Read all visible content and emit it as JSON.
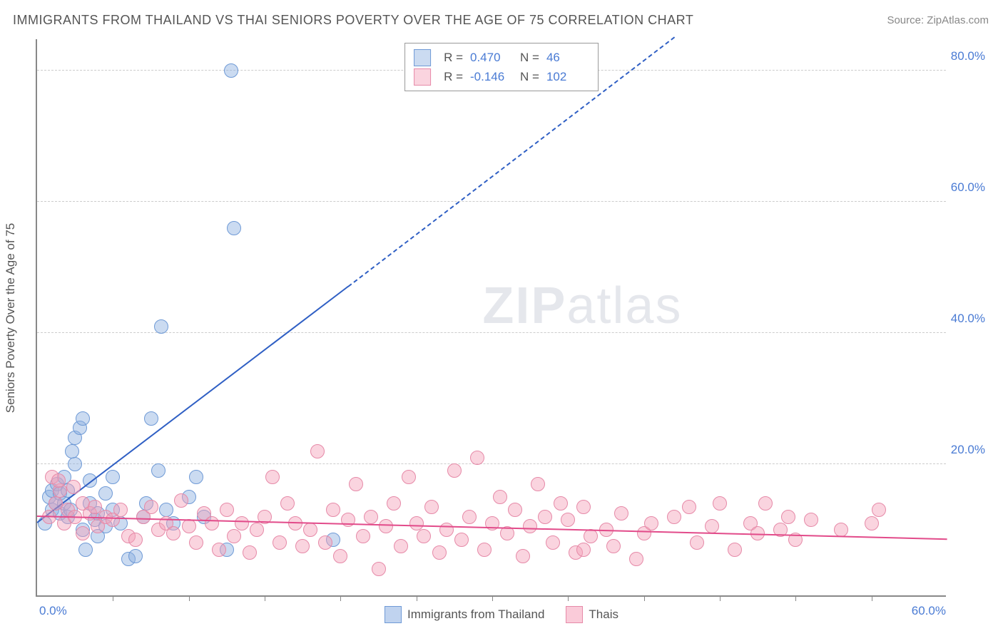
{
  "title": "IMMIGRANTS FROM THAILAND VS THAI SENIORS POVERTY OVER THE AGE OF 75 CORRELATION CHART",
  "source": "Source: ZipAtlas.com",
  "ylabel": "Seniors Poverty Over the Age of 75",
  "watermark_a": "ZIP",
  "watermark_b": "atlas",
  "chart": {
    "type": "scatter",
    "xlim": [
      0,
      60
    ],
    "ylim": [
      0,
      85
    ],
    "yticks": [
      {
        "v": 20,
        "label": "20.0%"
      },
      {
        "v": 40,
        "label": "40.0%"
      },
      {
        "v": 60,
        "label": "60.0%"
      },
      {
        "v": 80,
        "label": "80.0%"
      }
    ],
    "xtick_marks": [
      5,
      10,
      15,
      20,
      25,
      30,
      35,
      40,
      45,
      50,
      55
    ],
    "xtick_0": "0.0%",
    "xtick_max": "60.0%",
    "grid_color": "#cccccc",
    "background_color": "#ffffff",
    "point_radius": 9,
    "series": [
      {
        "name": "Immigrants from Thailand",
        "fill": "rgba(140,175,225,0.45)",
        "stroke": "#6f9ad6",
        "trend_color": "#2f5fc4",
        "R": "0.470",
        "N": "46",
        "trend": {
          "x1": 0,
          "y1": 11,
          "x2": 20.5,
          "y2": 47,
          "dash_after_x": 20.5,
          "x3": 42,
          "y3": 85
        },
        "points": [
          [
            0.5,
            11
          ],
          [
            0.8,
            15
          ],
          [
            1.0,
            16
          ],
          [
            1.0,
            13
          ],
          [
            1.2,
            14
          ],
          [
            1.3,
            17
          ],
          [
            1.5,
            12.5
          ],
          [
            1.5,
            15.5
          ],
          [
            1.8,
            14
          ],
          [
            1.8,
            18
          ],
          [
            2.0,
            12
          ],
          [
            2.0,
            16
          ],
          [
            2.2,
            13
          ],
          [
            2.5,
            20
          ],
          [
            2.5,
            24
          ],
          [
            2.8,
            25.5
          ],
          [
            3.0,
            27
          ],
          [
            3.0,
            10
          ],
          [
            3.2,
            7
          ],
          [
            3.5,
            14
          ],
          [
            3.8,
            11.5
          ],
          [
            4.0,
            12.5
          ],
          [
            4.0,
            9
          ],
          [
            4.5,
            10.5
          ],
          [
            5.0,
            18
          ],
          [
            5.0,
            13
          ],
          [
            5.5,
            11
          ],
          [
            6.0,
            5.5
          ],
          [
            6.5,
            6
          ],
          [
            7.0,
            12
          ],
          [
            7.5,
            27
          ],
          [
            8.0,
            19
          ],
          [
            8.5,
            13
          ],
          [
            9.0,
            11
          ],
          [
            10.0,
            15
          ],
          [
            10.5,
            18
          ],
          [
            11.0,
            12
          ],
          [
            12.5,
            7
          ],
          [
            8.2,
            41
          ],
          [
            12.8,
            80
          ],
          [
            13.0,
            56
          ],
          [
            7.2,
            14
          ],
          [
            4.5,
            15.5
          ],
          [
            3.5,
            17.5
          ],
          [
            19.5,
            8.5
          ],
          [
            2.3,
            22
          ]
        ]
      },
      {
        "name": "Thais",
        "fill": "rgba(245,160,185,0.45)",
        "stroke": "#e68aa8",
        "trend_color": "#e24b8a",
        "R": "-0.146",
        "N": "102",
        "trend": {
          "x1": 0,
          "y1": 12,
          "x2": 60,
          "y2": 8.5
        },
        "points": [
          [
            0.8,
            12
          ],
          [
            1.2,
            14
          ],
          [
            1.5,
            16
          ],
          [
            1.8,
            11
          ],
          [
            2.0,
            13
          ],
          [
            2.4,
            16.5
          ],
          [
            2.5,
            12
          ],
          [
            3.0,
            14
          ],
          [
            3.0,
            9.5
          ],
          [
            3.5,
            12.5
          ],
          [
            3.8,
            13.5
          ],
          [
            4.0,
            10.5
          ],
          [
            4.5,
            12
          ],
          [
            5.0,
            11.5
          ],
          [
            5.5,
            13
          ],
          [
            6.0,
            9
          ],
          [
            6.5,
            8.5
          ],
          [
            7.0,
            12
          ],
          [
            7.5,
            13.5
          ],
          [
            8.0,
            10
          ],
          [
            8.5,
            11
          ],
          [
            9.0,
            9.5
          ],
          [
            9.5,
            14.5
          ],
          [
            10.0,
            10.5
          ],
          [
            10.5,
            8
          ],
          [
            11.0,
            12.5
          ],
          [
            11.5,
            11
          ],
          [
            12.0,
            7
          ],
          [
            12.5,
            13
          ],
          [
            13.0,
            9
          ],
          [
            13.5,
            11
          ],
          [
            14.0,
            6.5
          ],
          [
            14.5,
            10
          ],
          [
            15.0,
            12
          ],
          [
            15.5,
            18
          ],
          [
            16.0,
            8
          ],
          [
            16.5,
            14
          ],
          [
            17.0,
            11
          ],
          [
            17.5,
            7.5
          ],
          [
            18.0,
            10
          ],
          [
            18.5,
            22
          ],
          [
            19.0,
            8
          ],
          [
            19.5,
            13
          ],
          [
            20.0,
            6
          ],
          [
            20.5,
            11.5
          ],
          [
            21.0,
            17
          ],
          [
            21.5,
            9
          ],
          [
            22.0,
            12
          ],
          [
            22.5,
            4
          ],
          [
            23.0,
            10.5
          ],
          [
            23.5,
            14
          ],
          [
            24.0,
            7.5
          ],
          [
            24.5,
            18
          ],
          [
            25.0,
            11
          ],
          [
            25.5,
            9
          ],
          [
            26.0,
            13.5
          ],
          [
            26.5,
            6.5
          ],
          [
            27.0,
            10
          ],
          [
            27.5,
            19
          ],
          [
            28.0,
            8.5
          ],
          [
            28.5,
            12
          ],
          [
            29.0,
            21
          ],
          [
            29.5,
            7
          ],
          [
            30.0,
            11
          ],
          [
            30.5,
            15
          ],
          [
            31.0,
            9.5
          ],
          [
            31.5,
            13
          ],
          [
            32.0,
            6
          ],
          [
            32.5,
            10.5
          ],
          [
            33.0,
            17
          ],
          [
            33.5,
            12
          ],
          [
            34.0,
            8
          ],
          [
            35.0,
            11.5
          ],
          [
            35.5,
            6.5
          ],
          [
            36.0,
            13.5
          ],
          [
            36.5,
            9
          ],
          [
            37.5,
            10
          ],
          [
            38.0,
            7.5
          ],
          [
            38.5,
            12.5
          ],
          [
            39.5,
            5.5
          ],
          [
            40.0,
            9.5
          ],
          [
            40.5,
            11
          ],
          [
            42.0,
            12
          ],
          [
            43.0,
            13.5
          ],
          [
            43.5,
            8
          ],
          [
            44.5,
            10.5
          ],
          [
            45.0,
            14
          ],
          [
            46.0,
            7
          ],
          [
            47.0,
            11
          ],
          [
            47.5,
            9.5
          ],
          [
            49.0,
            10
          ],
          [
            49.5,
            12
          ],
          [
            50.0,
            8.5
          ],
          [
            51.0,
            11.5
          ],
          [
            53.0,
            10
          ],
          [
            55.0,
            11
          ],
          [
            55.5,
            13
          ],
          [
            34.5,
            14
          ],
          [
            36.0,
            7
          ],
          [
            48.0,
            14
          ],
          [
            1.0,
            18
          ],
          [
            1.4,
            17.5
          ]
        ]
      }
    ]
  },
  "bottom_legend": [
    {
      "label": "Immigrants from Thailand",
      "fill": "rgba(140,175,225,0.55)",
      "stroke": "#6f9ad6"
    },
    {
      "label": "Thais",
      "fill": "rgba(245,160,185,0.55)",
      "stroke": "#e68aa8"
    }
  ]
}
